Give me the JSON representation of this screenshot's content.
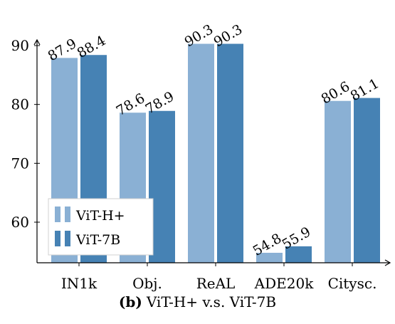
{
  "chart_data": {
    "type": "bar",
    "categories": [
      "IN1k",
      "Obj.",
      "ReAL",
      "ADE20k",
      "Citysc."
    ],
    "series": [
      {
        "name": "ViT-H+",
        "values": [
          87.9,
          78.6,
          90.3,
          54.8,
          80.6
        ],
        "color": "#8AB0D4"
      },
      {
        "name": "ViT-7B",
        "values": [
          88.4,
          78.9,
          90.3,
          55.9,
          81.1
        ],
        "color": "#4682B4"
      }
    ],
    "yticks": [
      60,
      70,
      80,
      90
    ],
    "ylim": [
      53,
      92
    ],
    "legend_position": "bottom-left",
    "grid": false
  },
  "caption": {
    "label": "(b)",
    "text": "ViT-H+ v.s. ViT-7B"
  }
}
